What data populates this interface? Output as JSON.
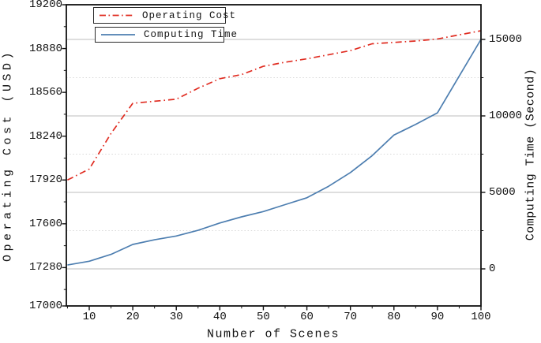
{
  "colors": {
    "axis": "#111111",
    "grid_major": "#bcbcbc",
    "grid_minor": "#d9d9d9",
    "operating_cost_red": "#e02c21",
    "computing_time_blue": "#4d7eb0"
  },
  "legend": {
    "items": [
      {
        "label": "Operating Cost",
        "style": "dashdot-red"
      },
      {
        "label": "Computing Time",
        "style": "solid-blue"
      }
    ]
  },
  "axes": {
    "left": {
      "title": "Operating Cost (USD)",
      "tick_labels": [
        "19200",
        "18880",
        "18560",
        "18240",
        "17920",
        "17600",
        "17280",
        "17000"
      ],
      "tick_values": [
        19200,
        18880,
        18560,
        18240,
        17920,
        17600,
        17280,
        17000
      ],
      "minor_values": [
        19040,
        18720,
        18400,
        18080,
        17760,
        17440,
        17120
      ],
      "range": [
        17000,
        19200
      ]
    },
    "right": {
      "title": "Computing Time (Second)",
      "tick_labels": [
        "15000",
        "10000",
        "5000",
        "0"
      ],
      "tick_values": [
        15000,
        10000,
        5000,
        0
      ],
      "minor_values": [
        12500,
        7500,
        2500
      ],
      "grid_solid": [
        0,
        5000,
        10000,
        15000
      ],
      "grid_dotted": [
        2500,
        7500,
        12500
      ]
    },
    "bottom": {
      "title": "Number of Scenes",
      "tick_labels": [
        "10",
        "20",
        "30",
        "40",
        "50",
        "60",
        "70",
        "80",
        "90",
        "100"
      ],
      "tick_values": [
        10,
        20,
        30,
        40,
        50,
        60,
        70,
        80,
        90,
        100
      ],
      "minor_values": [
        5,
        15,
        25,
        35,
        45,
        55,
        65,
        75,
        85,
        95
      ]
    }
  },
  "chart_data": {
    "type": "line",
    "title": "",
    "xlabel": "Number of Scenes",
    "ylabel_left": "Operating Cost (USD)",
    "ylabel_right": "Computing Time (Second)",
    "grid": "horizontal, solid at right-axis majors (0,5000,10000,15000), dotted at minors (2500,7500,12500)",
    "legend_position": "upper left, two stacked framed boxes",
    "xlim": [
      4.7,
      100
    ],
    "left_ylim": [
      17000,
      19200
    ],
    "right_ylim_approx": [
      -2400,
      17250
    ],
    "x": [
      5,
      10,
      15,
      20,
      25,
      30,
      35,
      40,
      45,
      50,
      55,
      60,
      65,
      70,
      75,
      80,
      85,
      90,
      95,
      100
    ],
    "series": [
      {
        "name": "Operating Cost",
        "axis": "left",
        "unit": "USD",
        "color": "#e02c21",
        "style": "dashdot",
        "values": [
          17920,
          18000,
          18260,
          18480,
          18495,
          18510,
          18590,
          18660,
          18690,
          18750,
          18780,
          18805,
          18835,
          18865,
          18915,
          18925,
          18935,
          18950,
          18980,
          19010
        ]
      },
      {
        "name": "Computing Time",
        "axis": "right",
        "unit": "Second",
        "color": "#4d7eb0",
        "style": "solid",
        "values": [
          250,
          500,
          950,
          1600,
          1900,
          2150,
          2520,
          3000,
          3400,
          3750,
          4200,
          4650,
          5400,
          6300,
          7400,
          8750,
          9450,
          10200,
          12600,
          15000
        ]
      }
    ]
  }
}
